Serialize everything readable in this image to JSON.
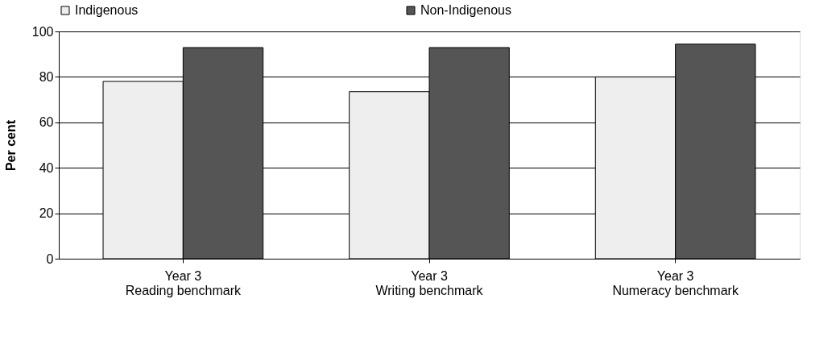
{
  "chart_data": {
    "type": "bar",
    "ylabel": "Per cent",
    "categories": [
      "Year 3\nReading benchmark",
      "Year 3\nWriting benchmark",
      "Year 3\nNumeracy benchmark"
    ],
    "series": [
      {
        "name": "Indigenous",
        "color": "#eeeeee",
        "values": [
          78,
          73.5,
          80
        ]
      },
      {
        "name": "Non-Indigenous",
        "color": "#555555",
        "values": [
          92.9,
          92.9,
          94.4
        ]
      }
    ],
    "ylim": [
      0,
      100
    ],
    "yticks": [
      0,
      20,
      40,
      60,
      80,
      100
    ],
    "grid": "y",
    "legend": "top"
  }
}
